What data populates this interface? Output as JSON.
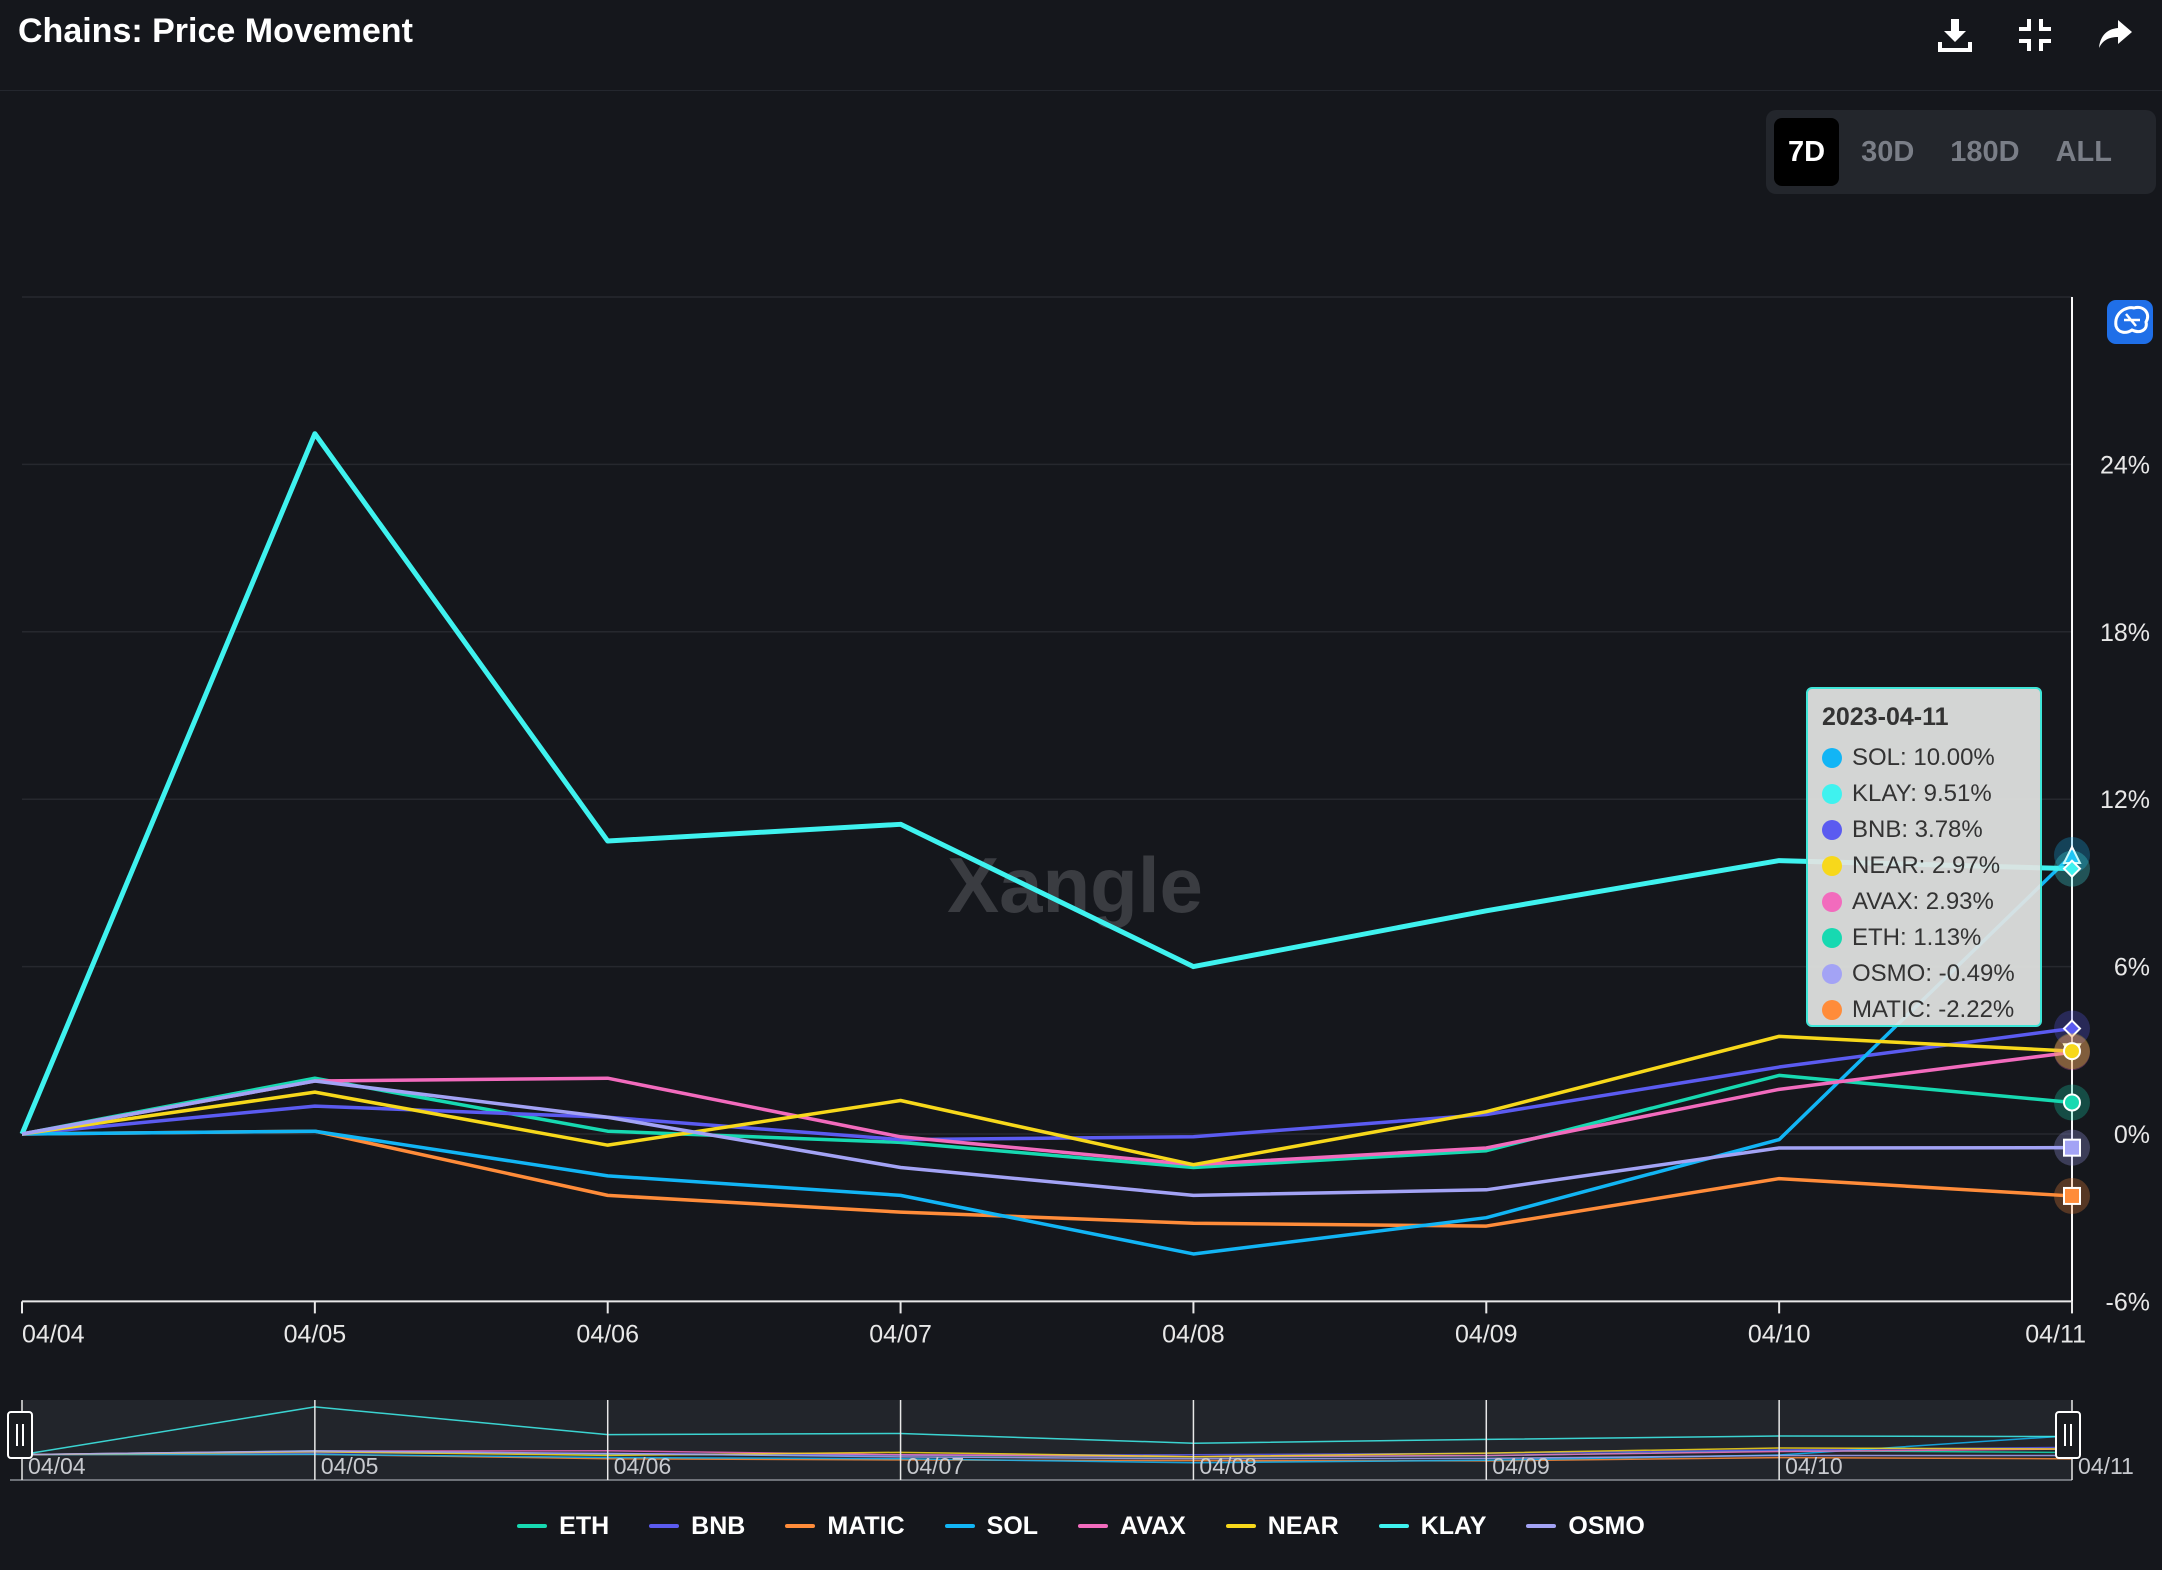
{
  "header": {
    "title": "Chains: Price Movement",
    "download_label": "download",
    "fullscreen_label": "exit fullscreen",
    "share_label": "share"
  },
  "range_selector": {
    "options": [
      "7D",
      "30D",
      "180D",
      "ALL"
    ],
    "active": "7D"
  },
  "watermark": "Xangle",
  "tooltip": {
    "date": "2023-04-11",
    "rows": [
      {
        "label": "SOL: 10.00%",
        "color": "#12b5f5"
      },
      {
        "label": "KLAY: 9.51%",
        "color": "#3ff2ef"
      },
      {
        "label": "BNB: 3.78%",
        "color": "#5b5bf0"
      },
      {
        "label": "NEAR: 2.97%",
        "color": "#f7d81b"
      },
      {
        "label": "AVAX: 2.93%",
        "color": "#f26bbd"
      },
      {
        "label": "ETH: 1.13%",
        "color": "#17d9b1"
      },
      {
        "label": "OSMO: -0.49%",
        "color": "#a3a3f5"
      },
      {
        "label": "MATIC: -2.22%",
        "color": "#ff8c3a"
      }
    ]
  },
  "chart_data": {
    "type": "line",
    "title": "Chains: Price Movement",
    "x": [
      "04/04",
      "04/05",
      "04/06",
      "04/07",
      "04/08",
      "04/09",
      "04/10",
      "04/11"
    ],
    "y_ticks": [
      24,
      18,
      12,
      6,
      0,
      -6
    ],
    "y_tick_labels": [
      "24%",
      "18%",
      "12%",
      "6%",
      "0%",
      "-6%"
    ],
    "ylim": [
      -6,
      30
    ],
    "ylabel": "",
    "xlabel": "",
    "grid": true,
    "y_axis_position": "right",
    "series": [
      {
        "name": "ETH",
        "color": "#17d9b1",
        "values": [
          0,
          2.0,
          0.1,
          -0.3,
          -1.2,
          -0.6,
          2.1,
          1.13
        ],
        "marker": "circle"
      },
      {
        "name": "BNB",
        "color": "#5b5bf0",
        "values": [
          0,
          1.0,
          0.6,
          -0.2,
          -0.1,
          0.7,
          2.4,
          3.78
        ],
        "marker": "diamond"
      },
      {
        "name": "MATIC",
        "color": "#ff8c3a",
        "values": [
          0,
          0.1,
          -2.2,
          -2.8,
          -3.2,
          -3.3,
          -1.6,
          -2.22
        ],
        "marker": "square"
      },
      {
        "name": "SOL",
        "color": "#12b5f5",
        "values": [
          0,
          0.1,
          -1.5,
          -2.2,
          -4.3,
          -3.0,
          -0.2,
          10.0
        ],
        "marker": "triangle"
      },
      {
        "name": "AVAX",
        "color": "#f26bbd",
        "values": [
          0,
          1.9,
          2.0,
          -0.1,
          -1.1,
          -0.5,
          1.6,
          2.93
        ],
        "marker": "triangle-down"
      },
      {
        "name": "NEAR",
        "color": "#f7d81b",
        "values": [
          0,
          1.5,
          -0.4,
          1.2,
          -1.1,
          0.8,
          3.5,
          2.97
        ],
        "marker": "circle"
      },
      {
        "name": "KLAY",
        "color": "#3ff2ef",
        "values": [
          0,
          25.1,
          10.5,
          11.1,
          6.0,
          8.0,
          9.8,
          9.51
        ],
        "marker": "diamond"
      },
      {
        "name": "OSMO",
        "color": "#a3a3f5",
        "values": [
          0,
          1.9,
          0.6,
          -1.2,
          -2.2,
          -2.0,
          -0.5,
          -0.49
        ],
        "marker": "square"
      }
    ],
    "legend": [
      "ETH",
      "BNB",
      "MATIC",
      "SOL",
      "AVAX",
      "NEAR",
      "KLAY",
      "OSMO"
    ],
    "legend_position": "bottom-center",
    "navigator": {
      "x_labels": [
        "04/04",
        "04/05",
        "04/06",
        "04/07",
        "04/08",
        "04/09",
        "04/10",
        "04/11"
      ]
    }
  }
}
